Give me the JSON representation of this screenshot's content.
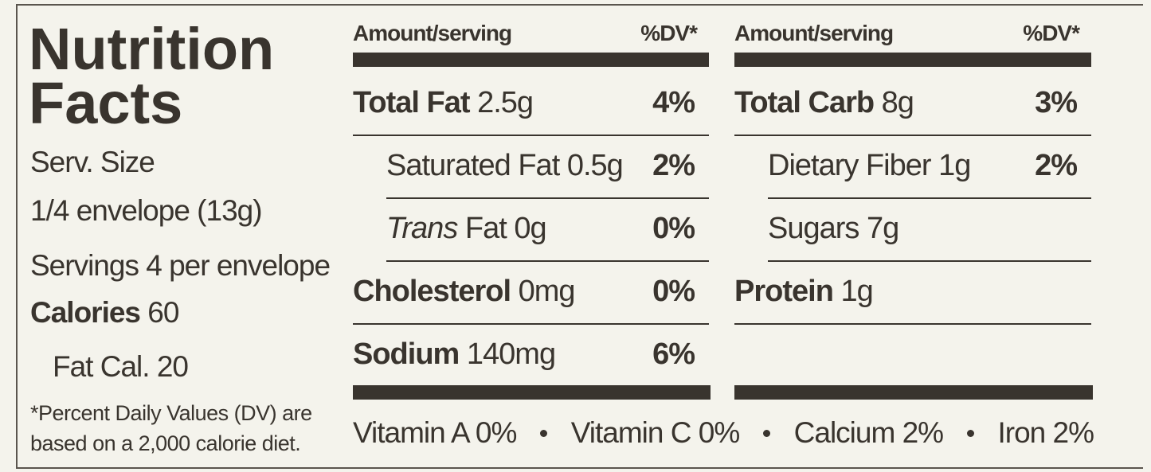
{
  "title": "Nutrition Facts",
  "serving": {
    "label": "Serv. Size",
    "size": "1/4 envelope (13g)",
    "servings": "Servings 4 per envelope",
    "calories_label": "Calories",
    "calories": "60",
    "fat_calories": "Fat Cal. 20",
    "footnote": "*Percent Daily Values (DV) are based on a 2,000 calorie diet."
  },
  "columns": [
    {
      "header_amount": "Amount/serving",
      "header_dv": "%DV*",
      "rows": [
        {
          "name": "Total Fat",
          "amount": "2.5g",
          "dv": "4%",
          "bold": true
        },
        {
          "name": "Saturated Fat",
          "amount": "0.5g",
          "dv": "2%",
          "indent": true
        },
        {
          "italic": "Trans",
          "name": "Fat",
          "amount": "0g",
          "dv": "0%",
          "indent": true
        },
        {
          "name": "Cholesterol",
          "amount": "0mg",
          "dv": "0%",
          "bold": true
        },
        {
          "name": "Sodium",
          "amount": "140mg",
          "dv": "6%",
          "bold": true
        }
      ]
    },
    {
      "header_amount": "Amount/serving",
      "header_dv": "%DV*",
      "rows": [
        {
          "name": "Total Carb",
          "amount": "8g",
          "dv": "3%",
          "bold": true
        },
        {
          "name": "Dietary Fiber",
          "amount": "1g",
          "dv": "2%",
          "indent": true
        },
        {
          "name": "Sugars",
          "amount": "7g",
          "indent": true
        },
        {
          "name": "Protein",
          "amount": "1g",
          "bold": true
        }
      ]
    }
  ],
  "vitamins": [
    {
      "name": "Vitamin A",
      "value": "0%"
    },
    {
      "name": "Vitamin C",
      "value": "0%"
    },
    {
      "name": "Calcium",
      "value": "2%"
    },
    {
      "name": "Iron",
      "value": "2%"
    }
  ]
}
